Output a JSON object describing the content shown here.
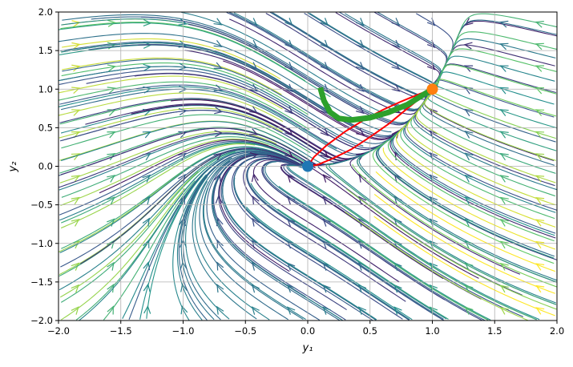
{
  "chart_data": {
    "type": "streamplot",
    "xlabel": "y₁",
    "ylabel": "y₂",
    "xlim": [
      -2,
      2
    ],
    "ylim": [
      -2,
      2
    ],
    "xticks": [
      {
        "value": -2,
        "label": "−2.0"
      },
      {
        "value": -1.5,
        "label": "−1.5"
      },
      {
        "value": -1,
        "label": "−1.0"
      },
      {
        "value": -0.5,
        "label": "−0.5"
      },
      {
        "value": 0,
        "label": "0.0"
      },
      {
        "value": 0.5,
        "label": "0.5"
      },
      {
        "value": 1,
        "label": "1.0"
      },
      {
        "value": 1.5,
        "label": "1.5"
      },
      {
        "value": 2,
        "label": "2.0"
      }
    ],
    "yticks": [
      {
        "value": -2,
        "label": "−2.0"
      },
      {
        "value": -1.5,
        "label": "−1.5"
      },
      {
        "value": -1,
        "label": "−1.0"
      },
      {
        "value": -0.5,
        "label": "−0.5"
      },
      {
        "value": 0,
        "label": "0.0"
      },
      {
        "value": 0.5,
        "label": "0.5"
      },
      {
        "value": 1,
        "label": "1.0"
      },
      {
        "value": 1.5,
        "label": "1.5"
      },
      {
        "value": 2,
        "label": "2.0"
      }
    ],
    "grid": true,
    "series": [
      {
        "style": "line",
        "color": "#ff0000",
        "x": [
          0,
          0.05,
          0.15,
          0.3,
          0.45,
          0.6,
          0.75,
          0.9,
          1,
          0.9,
          0.8,
          0.65,
          0.5,
          0.35,
          0.2,
          0.08,
          0
        ],
        "y": [
          0,
          0.12,
          0.27,
          0.45,
          0.6,
          0.73,
          0.84,
          0.94,
          1,
          0.88,
          0.75,
          0.55,
          0.38,
          0.22,
          0.1,
          0.02,
          0
        ]
      },
      {
        "style": "thick-line",
        "color": "#2ca02c",
        "x": [
          0.1,
          0.13,
          0.18,
          0.25,
          0.35,
          0.5,
          0.65,
          0.8,
          0.92,
          1
        ],
        "y": [
          1.02,
          0.85,
          0.7,
          0.62,
          0.6,
          0.63,
          0.7,
          0.8,
          0.92,
          1
        ]
      },
      {
        "style": "point",
        "color": "#1f77b4",
        "x": [
          0
        ],
        "y": [
          0
        ]
      },
      {
        "style": "point",
        "color": "#ff7f0e",
        "x": [
          1
        ],
        "y": [
          1
        ]
      }
    ]
  }
}
